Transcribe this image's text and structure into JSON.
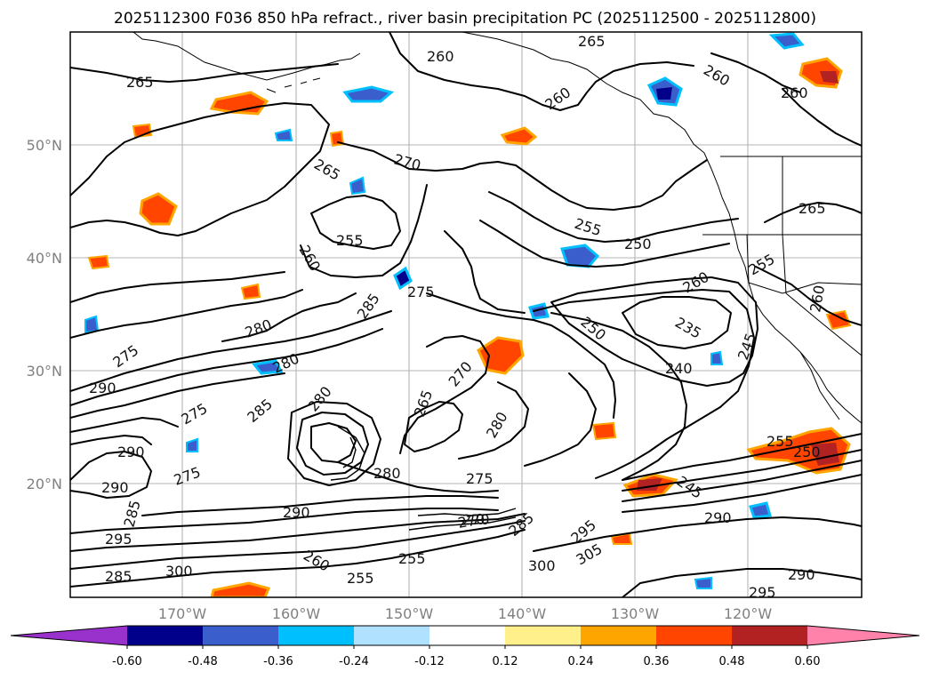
{
  "title": "2025112300 F036 850 hPa refract., river basin precipitation PC (2025112500 - 2025112800)",
  "map": {
    "lat_labels": [
      "50°N",
      "40°N",
      "30°N",
      "20°N"
    ],
    "lon_labels": [
      "170°W",
      "160°W",
      "150°W",
      "140°W",
      "130°W",
      "120°W"
    ],
    "contour_labels": [
      {
        "text": "265"
      },
      {
        "text": "260"
      },
      {
        "text": "265"
      },
      {
        "text": "260"
      },
      {
        "text": "260"
      },
      {
        "text": "260"
      },
      {
        "text": "265"
      },
      {
        "text": "270"
      },
      {
        "text": "255"
      },
      {
        "text": "260"
      },
      {
        "text": "255"
      },
      {
        "text": "250"
      },
      {
        "text": "265"
      },
      {
        "text": "255"
      },
      {
        "text": "285"
      },
      {
        "text": "275"
      },
      {
        "text": "260"
      },
      {
        "text": "250"
      },
      {
        "text": "235"
      },
      {
        "text": "245"
      },
      {
        "text": "240"
      },
      {
        "text": "280"
      },
      {
        "text": "280"
      },
      {
        "text": "275"
      },
      {
        "text": "290"
      },
      {
        "text": "280"
      },
      {
        "text": "285"
      },
      {
        "text": "265"
      },
      {
        "text": "270"
      },
      {
        "text": "280"
      },
      {
        "text": "290"
      },
      {
        "text": "275"
      },
      {
        "text": "280"
      },
      {
        "text": "275"
      },
      {
        "text": "290"
      },
      {
        "text": "285"
      },
      {
        "text": "270"
      },
      {
        "text": "285"
      },
      {
        "text": "295"
      },
      {
        "text": "305"
      },
      {
        "text": "300"
      },
      {
        "text": "290"
      },
      {
        "text": "295"
      },
      {
        "text": "290"
      },
      {
        "text": "255"
      },
      {
        "text": "260"
      },
      {
        "text": "255"
      },
      {
        "text": "270"
      },
      {
        "text": "245"
      },
      {
        "text": "290"
      },
      {
        "text": "295"
      },
      {
        "text": "300"
      },
      {
        "text": "285"
      },
      {
        "text": "275"
      },
      {
        "text": "255"
      },
      {
        "text": "250"
      },
      {
        "text": "260"
      }
    ]
  },
  "colorbar": {
    "colors": [
      "#9932cc",
      "#00008b",
      "#3a5fcd",
      "#00bfff",
      "#b0e2ff",
      "#ffffff",
      "#fff08c",
      "#ffa500",
      "#ff4500",
      "#b22222",
      "#ff82ab"
    ],
    "tick_labels": [
      "-0.60",
      "-0.48",
      "-0.36",
      "-0.24",
      "-0.12",
      "0.12",
      "0.24",
      "0.36",
      "0.48",
      "0.60"
    ]
  }
}
